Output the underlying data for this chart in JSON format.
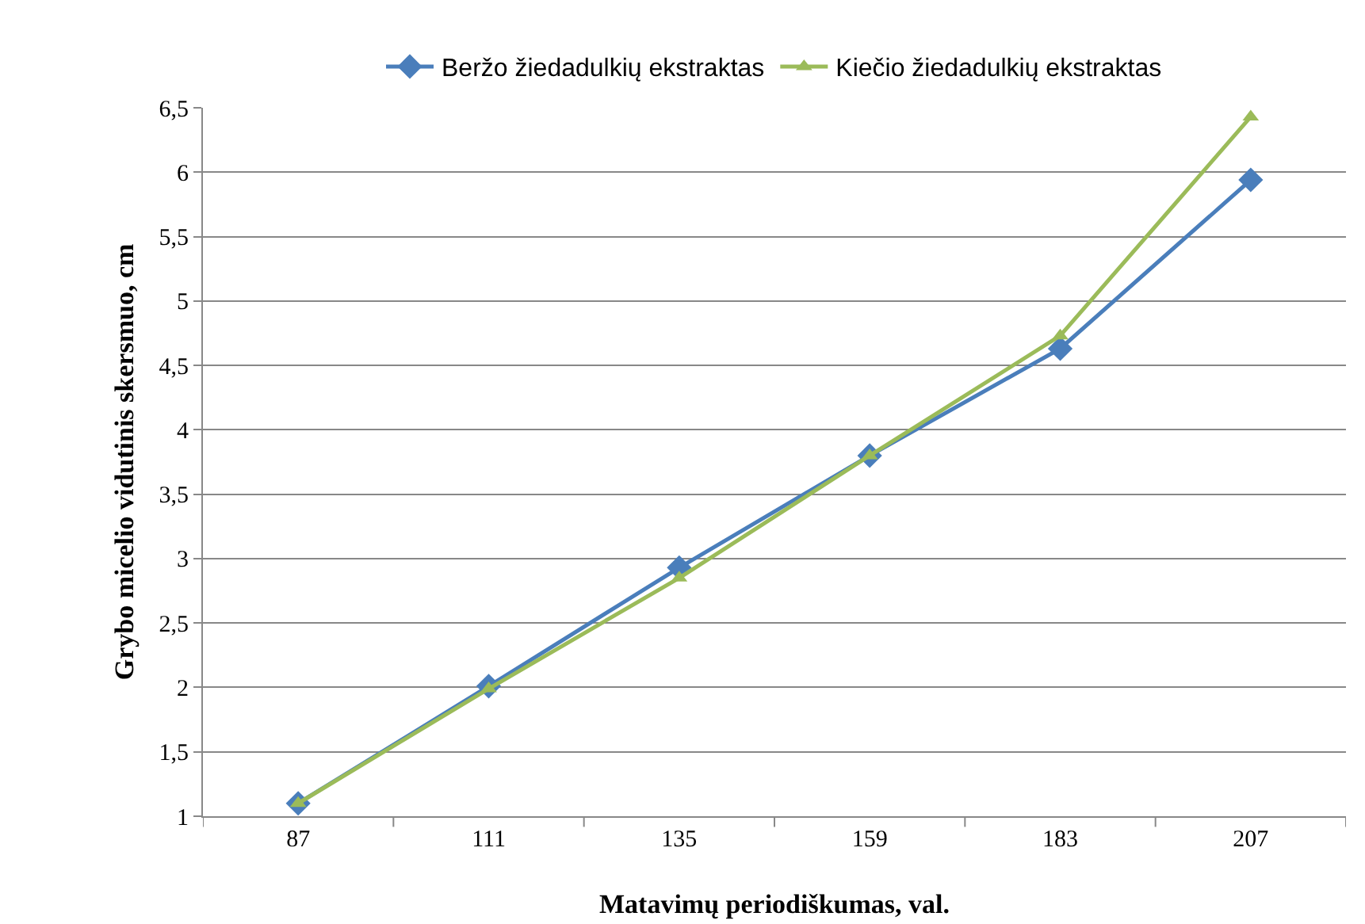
{
  "chart_data": {
    "type": "line",
    "xlabel": "Matavimų periodiškumas, val.",
    "ylabel": "Grybo micelio vidutinis skersmuo, cm",
    "categories": [
      "87",
      "111",
      "135",
      "159",
      "183",
      "207"
    ],
    "series": [
      {
        "name": "Beržo žiedadulkių ekstraktas",
        "color": "#4a7ebb",
        "marker": "diamond",
        "values": [
          1.1,
          2.01,
          2.93,
          3.8,
          4.63,
          5.94
        ]
      },
      {
        "name": "Kiečio žiedadulkių ekstraktas",
        "color": "#9bbb59",
        "marker": "triangle",
        "values": [
          1.1,
          1.99,
          2.85,
          3.8,
          4.73,
          6.43
        ]
      }
    ],
    "ylim": [
      1,
      6.5
    ],
    "yticks": [
      1,
      {
        "value": 1.5,
        "label": "1,5"
      },
      2,
      {
        "value": 2.5,
        "label": "2,5"
      },
      3,
      {
        "value": 3.5,
        "label": "3,5"
      },
      4,
      {
        "value": 4.5,
        "label": "4,5"
      },
      5,
      {
        "value": 5.5,
        "label": "5,5"
      },
      6,
      {
        "value": 6.5,
        "label": "6,5"
      }
    ],
    "grid": "y",
    "legend": "top",
    "line_style": "solid"
  }
}
